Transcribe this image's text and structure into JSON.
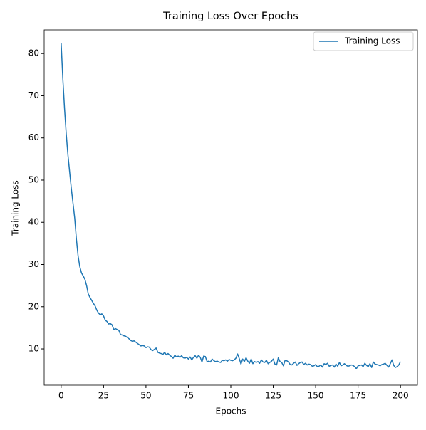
{
  "chart_data": {
    "type": "line",
    "title": "Training Loss Over Epochs",
    "x_label": "Epochs",
    "y_label": "Training Loss",
    "x": [
      0,
      1,
      2,
      3,
      4,
      5,
      6,
      7,
      8,
      9,
      10,
      11,
      12,
      13,
      14,
      15,
      16,
      17,
      18,
      19,
      20,
      21,
      22,
      23,
      24,
      25,
      26,
      27,
      28,
      29,
      30,
      31,
      32,
      33,
      34,
      35,
      36,
      37,
      38,
      39,
      40,
      41,
      42,
      43,
      44,
      45,
      46,
      47,
      48,
      49,
      50,
      51,
      52,
      53,
      54,
      55,
      56,
      57,
      58,
      59,
      60,
      61,
      62,
      63,
      64,
      65,
      66,
      67,
      68,
      69,
      70,
      71,
      72,
      73,
      74,
      75,
      76,
      77,
      78,
      79,
      80,
      81,
      82,
      83,
      84,
      85,
      86,
      87,
      88,
      89,
      90,
      91,
      92,
      93,
      94,
      95,
      96,
      97,
      98,
      99,
      100,
      101,
      102,
      103,
      104,
      105,
      106,
      107,
      108,
      109,
      110,
      111,
      112,
      113,
      114,
      115,
      116,
      117,
      118,
      119,
      120,
      121,
      122,
      123,
      124,
      125,
      126,
      127,
      128,
      129,
      130,
      131,
      132,
      133,
      134,
      135,
      136,
      137,
      138,
      139,
      140,
      141,
      142,
      143,
      144,
      145,
      146,
      147,
      148,
      149,
      150,
      151,
      152,
      153,
      154,
      155,
      156,
      157,
      158,
      159,
      160,
      161,
      162,
      163,
      164,
      165,
      166,
      167,
      168,
      169,
      170,
      171,
      172,
      173,
      174,
      175,
      176,
      177,
      178,
      179,
      180,
      181,
      182,
      183,
      184,
      185,
      186,
      187,
      188,
      189,
      190,
      191,
      192,
      193,
      194,
      195,
      196,
      197,
      198,
      199,
      200
    ],
    "series": [
      {
        "name": "Training Loss",
        "color": "#1f77b4",
        "values": [
          82.5,
          74,
          67,
          61,
          56,
          52,
          48,
          44.5,
          41,
          36,
          32,
          29.5,
          28,
          27.3,
          26.5,
          25,
          23,
          22.2,
          21.5,
          20.8,
          20.2,
          19.2,
          18.5,
          18.1,
          18.3,
          17.8,
          16.8,
          16.5,
          15.9,
          16.0,
          15.7,
          14.6,
          14.8,
          14.6,
          14.4,
          13.4,
          13.3,
          13.1,
          13.0,
          12.7,
          12.4,
          12.0,
          11.8,
          11.9,
          11.6,
          11.3,
          11.0,
          10.7,
          10.8,
          10.7,
          10.3,
          10.5,
          10.4,
          9.8,
          9.6,
          9.9,
          10.2,
          9.2,
          9.0,
          8.9,
          8.7,
          9.2,
          8.6,
          8.9,
          8.5,
          8.2,
          7.8,
          8.5,
          8.1,
          8.3,
          8.0,
          8.4,
          7.9,
          7.8,
          8.0,
          7.6,
          8.1,
          7.4,
          8.0,
          8.4,
          7.8,
          8.5,
          8.0,
          6.9,
          8.3,
          8.2,
          7.0,
          7.1,
          6.9,
          7.6,
          7.2,
          7.0,
          7.1,
          6.9,
          6.8,
          7.3,
          7.2,
          7.4,
          7.1,
          7.5,
          7.3,
          7.2,
          7.4,
          7.8,
          8.8,
          7.7,
          6.4,
          7.6,
          7.0,
          7.9,
          7.1,
          6.6,
          7.6,
          6.5,
          7.0,
          6.8,
          7.0,
          6.6,
          7.4,
          6.9,
          6.8,
          7.3,
          6.5,
          6.8,
          7.1,
          7.6,
          6.4,
          6.2,
          7.9,
          7.0,
          6.8,
          6.0,
          7.3,
          7.2,
          6.9,
          6.3,
          6.2,
          6.6,
          6.9,
          6.1,
          6.5,
          6.8,
          6.9,
          6.3,
          6.6,
          6.2,
          6.4,
          6.3,
          5.9,
          6.0,
          6.3,
          5.8,
          5.9,
          6.2,
          5.7,
          6.5,
          6.3,
          6.6,
          5.9,
          6.1,
          6.2,
          5.7,
          6.4,
          5.9,
          6.8,
          6.0,
          6.2,
          6.5,
          6.1,
          5.9,
          6.0,
          6.2,
          6.1,
          5.8,
          5.3,
          6.0,
          6.1,
          6.2,
          5.8,
          6.6,
          6.1,
          5.8,
          6.5,
          5.6,
          6.9,
          6.4,
          6.3,
          6.2,
          6.0,
          6.3,
          6.4,
          6.6,
          6.1,
          5.7,
          6.5,
          7.4,
          6.1,
          5.6,
          5.8,
          6.2,
          7.0
        ]
      }
    ],
    "xlim": [
      -10,
      210
    ],
    "ylim": [
      1.4,
      85.6
    ],
    "xticks": [
      0,
      25,
      50,
      75,
      100,
      125,
      150,
      175,
      200
    ],
    "yticks": [
      10,
      20,
      30,
      40,
      50,
      60,
      70,
      80
    ],
    "legend": "upper right"
  }
}
